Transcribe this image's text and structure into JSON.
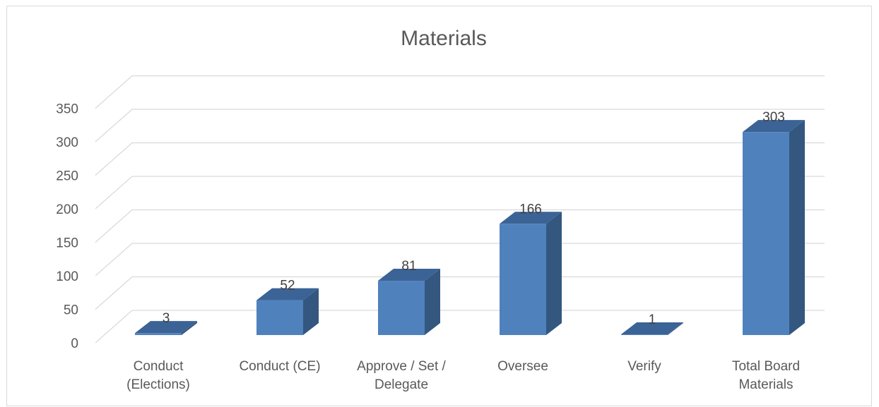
{
  "chart_data": {
    "type": "bar",
    "style": "3d-column",
    "title": "Materials",
    "xlabel": "",
    "ylabel": "",
    "categories": [
      [
        "Conduct",
        "(Elections)"
      ],
      [
        "Conduct (CE)"
      ],
      [
        "Approve / Set /",
        "Delegate"
      ],
      [
        "Oversee"
      ],
      [
        "Verify"
      ],
      [
        "Total Board",
        "Materials"
      ]
    ],
    "series": [
      {
        "values": [
          3,
          52,
          81,
          166,
          1,
          303
        ]
      }
    ],
    "ylim": [
      0,
      350
    ],
    "yticks": [
      "0",
      "50",
      "100",
      "150",
      "200",
      "250",
      "300",
      "350"
    ],
    "grid": true,
    "legend": "none",
    "colors": {
      "bar_front": "#4f81bd",
      "bar_side": "#34577f",
      "bar_top": "#3b6396",
      "grid": "#d9d9d9",
      "text": "#595959"
    }
  }
}
